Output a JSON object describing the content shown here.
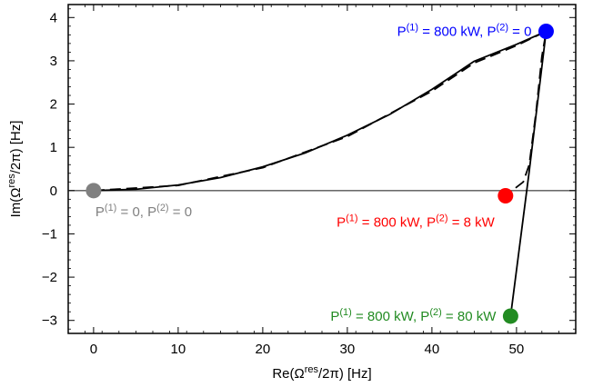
{
  "chart_data": {
    "type": "scatter",
    "title": "",
    "xlabel": {
      "base": "Re(Ω",
      "sup": "res",
      "tail": "/2π) [Hz]"
    },
    "ylabel": {
      "base": "Im(Ω",
      "sup": "res",
      "tail": "/2π) [Hz]"
    },
    "xlim": [
      -3,
      57
    ],
    "ylim": [
      -3.3,
      4.3
    ],
    "xticks": [
      0,
      10,
      20,
      30,
      40,
      50
    ],
    "yticks": [
      -3,
      -2,
      -1,
      0,
      1,
      2,
      3,
      4
    ],
    "grid": false,
    "zero_line": 0,
    "curves": [
      {
        "style": "solid",
        "points": [
          [
            0,
            0
          ],
          [
            5,
            0.03
          ],
          [
            10,
            0.13
          ],
          [
            15,
            0.3
          ],
          [
            20,
            0.55
          ],
          [
            25,
            0.87
          ],
          [
            30,
            1.28
          ],
          [
            35,
            1.76
          ],
          [
            40,
            2.34
          ],
          [
            45,
            2.99
          ],
          [
            50,
            3.38
          ],
          [
            53.5,
            3.68
          ],
          [
            51.5,
            0.45
          ],
          [
            49.3,
            -2.9
          ]
        ]
      },
      {
        "style": "dashed",
        "points": [
          [
            0,
            0
          ],
          [
            10,
            0.12
          ],
          [
            20,
            0.53
          ],
          [
            30,
            1.25
          ],
          [
            40,
            2.3
          ],
          [
            45,
            2.95
          ],
          [
            50,
            3.35
          ],
          [
            53.5,
            3.68
          ],
          [
            53,
            3.1
          ],
          [
            52.3,
            1.8
          ],
          [
            51.5,
            0.6
          ],
          [
            50.8,
            0.2
          ],
          [
            48.7,
            -0.12
          ]
        ]
      }
    ],
    "points": [
      {
        "x": 0,
        "y": 0,
        "color": "#808080",
        "label": {
          "p1": "0",
          "p2": "0"
        },
        "label_side": "below-right"
      },
      {
        "x": 53.5,
        "y": 3.68,
        "color": "#0000ff",
        "label": {
          "p1": "800 kW",
          "p2": "0"
        },
        "label_side": "left"
      },
      {
        "x": 48.7,
        "y": -0.12,
        "color": "#ff0000",
        "label": {
          "p1": "800 kW",
          "p2": "8 kW"
        },
        "label_side": "below-left"
      },
      {
        "x": 49.3,
        "y": -2.9,
        "color": "#228b22",
        "label": {
          "p1": "800 kW",
          "p2": "80 kW"
        },
        "label_side": "left"
      }
    ],
    "label_prefix": {
      "p1": "P",
      "p2": "P",
      "sup1": "(1)",
      "sup2": "(2)",
      "eq": " = ",
      "sep": ", "
    }
  }
}
